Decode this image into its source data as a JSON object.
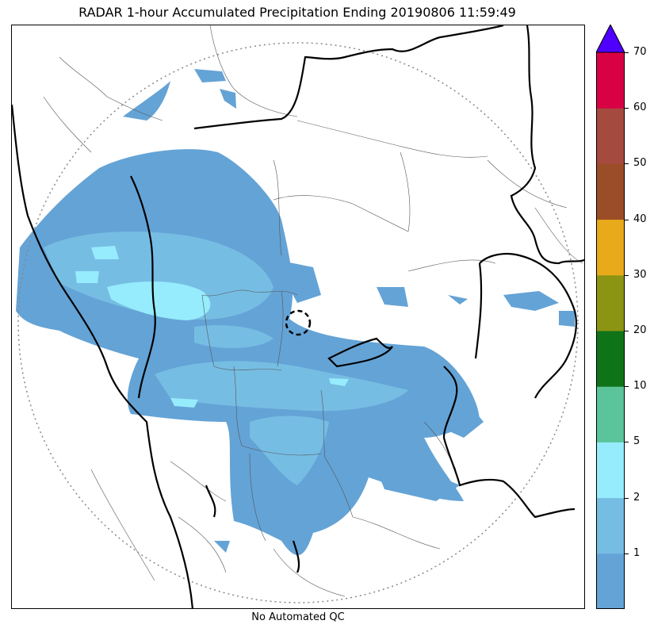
{
  "title": "RADAR 1-hour Accumulated Precipitation Ending 20190806 11:59:49",
  "caption": "No Automated QC",
  "colorbar": {
    "ticks": [
      "1",
      "2",
      "5",
      "10",
      "20",
      "30",
      "40",
      "50",
      "60",
      "70"
    ],
    "colors": [
      "#64a3d6",
      "#76bde3",
      "#96ecfc",
      "#5cc49a",
      "#0f7318",
      "#8b9413",
      "#e8aa1b",
      "#9b4d27",
      "#a6493f",
      "#d80144"
    ],
    "extend_color": "#5000ff"
  },
  "legend_bins": [
    {
      "lo": 0,
      "hi": 1,
      "color": "#64a3d6"
    },
    {
      "lo": 1,
      "hi": 2,
      "color": "#76bde3"
    },
    {
      "lo": 2,
      "hi": 5,
      "color": "#96ecfc"
    },
    {
      "lo": 5,
      "hi": 10,
      "color": "#5cc49a"
    },
    {
      "lo": 10,
      "hi": 20,
      "color": "#0f7318"
    },
    {
      "lo": 20,
      "hi": 30,
      "color": "#8b9413"
    },
    {
      "lo": 30,
      "hi": 40,
      "color": "#e8aa1b"
    },
    {
      "lo": 40,
      "hi": 50,
      "color": "#9b4d27"
    },
    {
      "lo": 50,
      "hi": 60,
      "color": "#a6493f"
    },
    {
      "lo": 60,
      "hi": 70,
      "color": "#d80144"
    }
  ],
  "units_note": ""
}
